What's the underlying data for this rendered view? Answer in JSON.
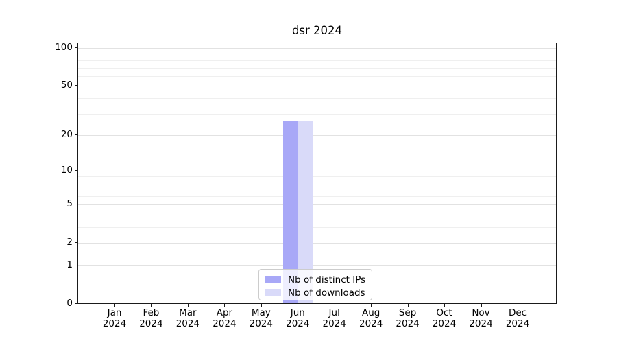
{
  "chart_data": {
    "type": "bar",
    "title": "dsr 2024",
    "x_months": [
      "Jan",
      "Feb",
      "Mar",
      "Apr",
      "May",
      "Jun",
      "Jul",
      "Aug",
      "Sep",
      "Oct",
      "Nov",
      "Dec"
    ],
    "x_year": "2024",
    "series": [
      {
        "name": "Nb of distinct IPs",
        "color": "#a8a8f7",
        "values": [
          0,
          0,
          0,
          0,
          0,
          26,
          0,
          0,
          0,
          0,
          0,
          0
        ]
      },
      {
        "name": "Nb of downloads",
        "color": "#d9daf9",
        "values": [
          0,
          0,
          0,
          0,
          0,
          26,
          0,
          0,
          0,
          0,
          0,
          0
        ]
      }
    ],
    "xlabel": "",
    "ylabel": "",
    "ylim": [
      0,
      100
    ],
    "y_scale": "log10(1+v)",
    "y_ticks": [
      0,
      1,
      2,
      5,
      10,
      20,
      50,
      100
    ],
    "y_minor_gridlines": [
      3,
      4,
      6,
      7,
      8,
      9,
      30,
      40,
      60,
      70,
      80,
      90
    ],
    "dark_gridline_at": 10,
    "grid": true,
    "legend_position": "lower center",
    "colors": {
      "background": "#ffffff",
      "spine": "#1a1a1a",
      "tick_text": "#000000",
      "grid_major": "#e2e2e2",
      "grid_minor": "#efefef",
      "grid_dark": "#b3b3b3",
      "legend_border": "#cccccc"
    }
  }
}
